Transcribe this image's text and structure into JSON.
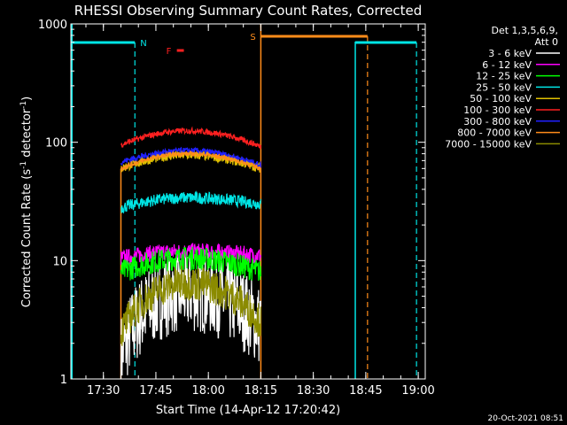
{
  "chart_data": {
    "type": "line",
    "title": "RHESSI Observing Summary Count Rates, Corrected",
    "xlabel": "Start Time (14-Apr-12 17:20:42)",
    "ylabel": "Corrected Count Rate (s",
    "ylabel_sup1": "-1",
    "ylabel_mid": " detector",
    "ylabel_sup2": "-1",
    "ylabel_end": ")",
    "yscale": "log",
    "ylim": [
      1,
      1000
    ],
    "xlim": [
      "17:20:42",
      "19:02:00"
    ],
    "x_ticks": [
      "17:30",
      "17:45",
      "18:00",
      "18:15",
      "18:30",
      "18:45",
      "19:00"
    ],
    "y_ticks": [
      "1",
      "10",
      "100",
      "1000"
    ],
    "legend_header": [
      "Det 1,3,5,6,9,",
      "Att 0"
    ],
    "legend_position": "right",
    "timestamp": "20-Oct-2021 08:51",
    "flags": [
      {
        "label": "N",
        "color": "#00e5e5",
        "bar": [
          "17:20:42",
          "17:39:00"
        ],
        "line": "17:39:00"
      },
      {
        "label": "F",
        "color": "#ff2020",
        "bar": [
          "17:51:00",
          "17:53:00"
        ]
      },
      {
        "label": "S",
        "color": "#ff8c1a",
        "bar": [
          "18:15:00",
          "18:45:30"
        ],
        "line": "18:45:30"
      }
    ],
    "extra_lines": [
      {
        "time": "17:35:00",
        "color": "#ff8c1a",
        "style": "solid"
      },
      {
        "time": "18:15:00",
        "color": "#ff8c1a",
        "style": "solid"
      },
      {
        "time": "18:42:00",
        "color": "#00e5e5",
        "style": "solid"
      },
      {
        "time": "18:59:30",
        "color": "#00e5e5",
        "style": "dashed"
      },
      {
        "time": "17:20:42",
        "color": "#00e5e5",
        "style": "solid"
      },
      {
        "time": "18:59:30",
        "color": "#00e5e5",
        "style": "solid",
        "segment": "N2"
      }
    ],
    "observation": {
      "start": "17:35:00",
      "end": "18:15:00",
      "peak": "17:54:00"
    },
    "series": [
      {
        "name": "3 - 6 keV",
        "color": "#ffffff",
        "start": 1.6,
        "peak": 5.5,
        "end": 2.8,
        "noise": 0.35
      },
      {
        "name": "6 - 12 keV",
        "color": "#ff00ff",
        "start": 10.5,
        "peak": 12.0,
        "end": 11.0,
        "noise": 0.07
      },
      {
        "name": "12 - 25 keV",
        "color": "#00ff00",
        "start": 8.0,
        "peak": 10.5,
        "end": 8.0,
        "noise": 0.1
      },
      {
        "name": "25 - 50 keV",
        "color": "#00e5e5",
        "start": 28.0,
        "peak": 34.0,
        "end": 30.0,
        "noise": 0.05
      },
      {
        "name": "50 - 100 keV",
        "color": "#e0c000",
        "start": 60.0,
        "peak": 78.0,
        "end": 60.0,
        "noise": 0.04
      },
      {
        "name": "100 - 300 keV",
        "color": "#ff2020",
        "start": 95.0,
        "peak": 125.0,
        "end": 92.0,
        "noise": 0.025
      },
      {
        "name": "300 - 800 keV",
        "color": "#2020ff",
        "start": 68.0,
        "peak": 85.0,
        "end": 64.0,
        "noise": 0.025
      },
      {
        "name": "800 - 7000 keV",
        "color": "#ff8c1a",
        "start": 60.0,
        "peak": 80.0,
        "end": 60.0,
        "noise": 0.02
      },
      {
        "name": "7000 - 15000 keV",
        "color": "#8b8b00",
        "start": 2.5,
        "peak": 6.5,
        "end": 3.0,
        "noise": 0.15
      }
    ]
  }
}
